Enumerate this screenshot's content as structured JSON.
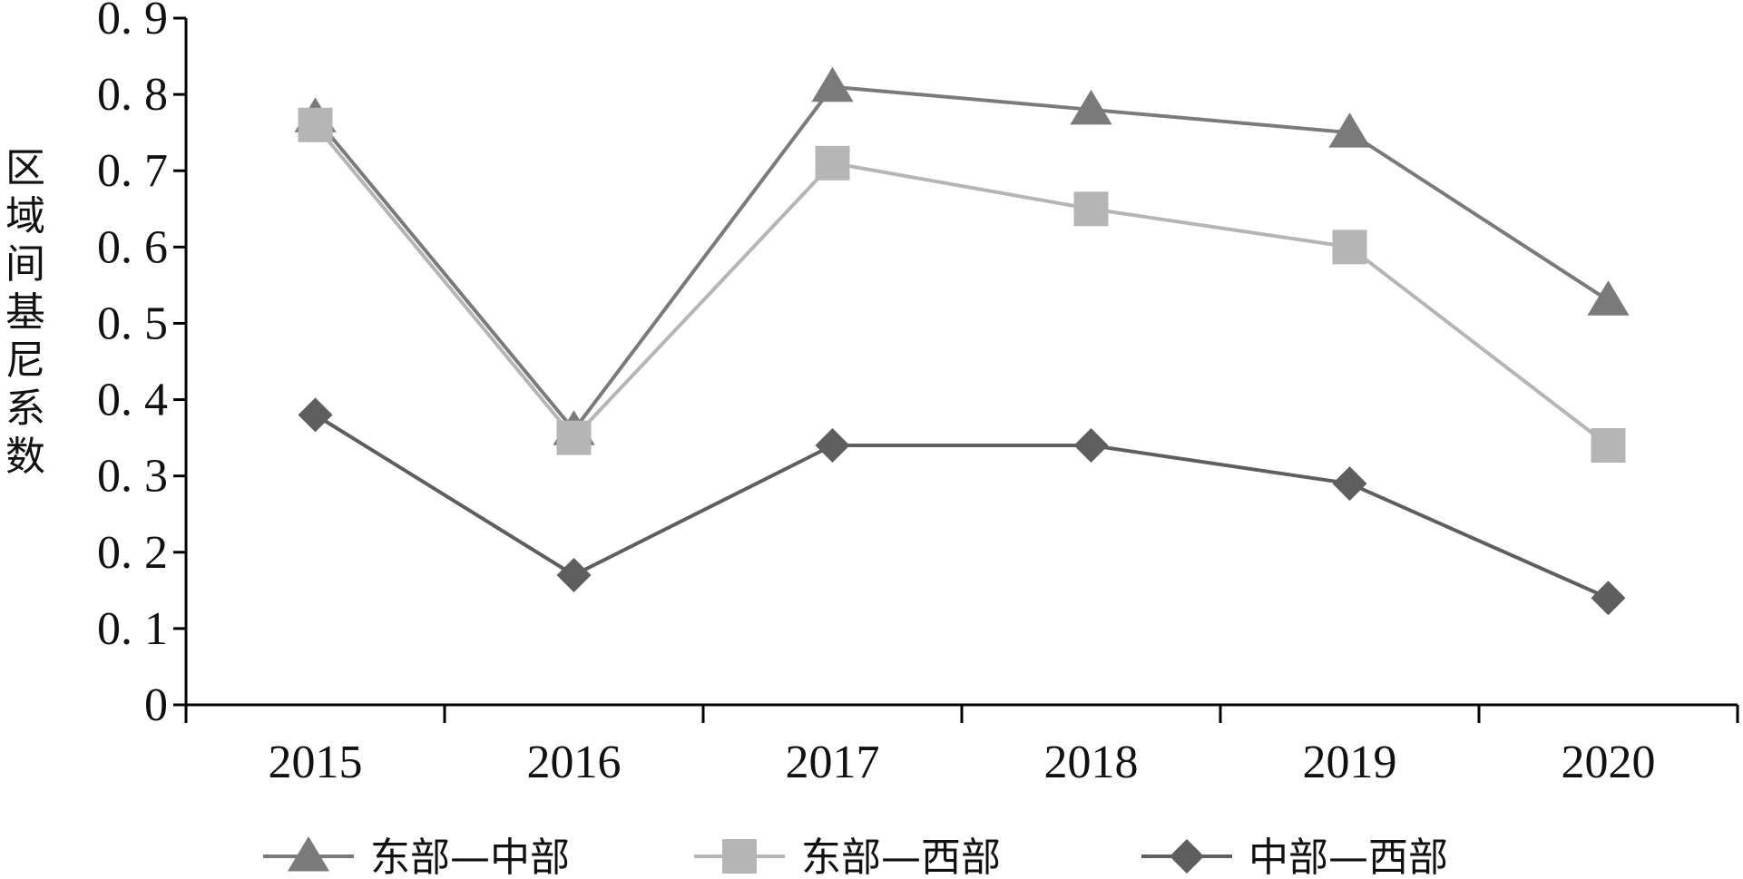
{
  "chart_data": {
    "type": "line",
    "title": "",
    "xlabel": "",
    "ylabel": "区域间基尼系数",
    "categories": [
      "2015",
      "2016",
      "2017",
      "2018",
      "2019",
      "2020"
    ],
    "ylim": [
      0,
      0.9
    ],
    "yticks": [
      {
        "value": 0,
        "label": "0"
      },
      {
        "value": 0.1,
        "label": "0. 1"
      },
      {
        "value": 0.2,
        "label": "0. 2"
      },
      {
        "value": 0.3,
        "label": "0. 3"
      },
      {
        "value": 0.4,
        "label": "0. 4"
      },
      {
        "value": 0.5,
        "label": "0. 5"
      },
      {
        "value": 0.6,
        "label": "0. 6"
      },
      {
        "value": 0.7,
        "label": "0. 7"
      },
      {
        "value": 0.8,
        "label": "0. 8"
      },
      {
        "value": 0.9,
        "label": "0. 9"
      }
    ],
    "grid": false,
    "legend_position": "bottom",
    "series": [
      {
        "name": "东部—中部",
        "marker": "triangle",
        "color": "#7a7a7a",
        "values": [
          0.77,
          0.36,
          0.81,
          0.78,
          0.75,
          0.53
        ]
      },
      {
        "name": "东部—西部",
        "marker": "square",
        "color": "#b5b5b5",
        "values": [
          0.76,
          0.35,
          0.71,
          0.65,
          0.6,
          0.34
        ]
      },
      {
        "name": "中部—西部",
        "marker": "diamond",
        "color": "#5e5e5e",
        "values": [
          0.38,
          0.17,
          0.34,
          0.34,
          0.29,
          0.14
        ]
      }
    ]
  }
}
